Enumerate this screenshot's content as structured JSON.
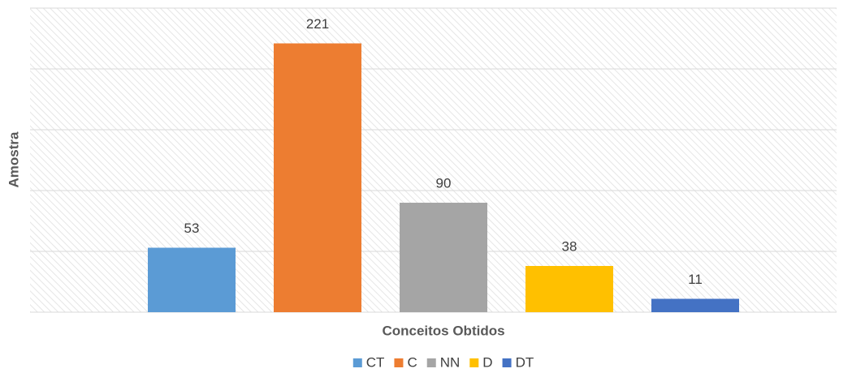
{
  "chart_data": {
    "type": "bar",
    "x_label": "Conceitos Obtidos",
    "y_label": "Amostra",
    "categories": [
      null
    ],
    "series": [
      {
        "name": "CT",
        "color": "#5b9bd5",
        "values": [
          53
        ]
      },
      {
        "name": "C",
        "color": "#ed7d31",
        "values": [
          221
        ]
      },
      {
        "name": "NN",
        "color": "#a5a5a5",
        "values": [
          90
        ]
      },
      {
        "name": "D",
        "color": "#ffc000",
        "values": [
          38
        ]
      },
      {
        "name": "DT",
        "color": "#4472c4",
        "values": [
          11
        ]
      }
    ],
    "ylim": [
      0,
      250
    ],
    "yticks": [
      0,
      50,
      100,
      150,
      200,
      250
    ],
    "grid": true,
    "legend": "bottom"
  }
}
